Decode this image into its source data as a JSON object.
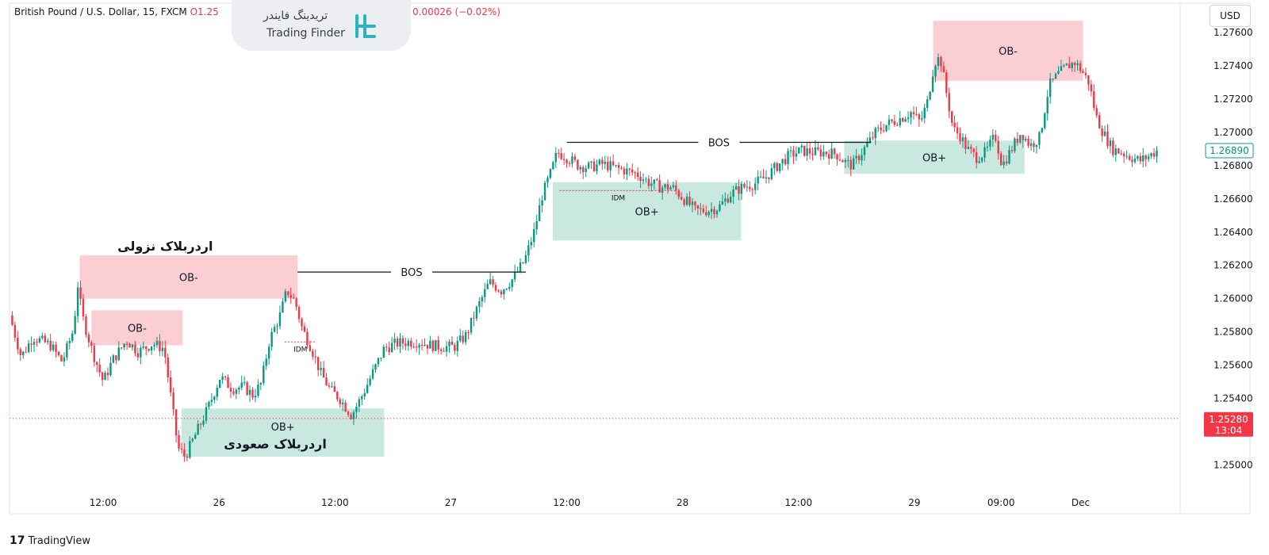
{
  "header": {
    "symbol": "British Pound / U.S. Dollar, 15, FXCM",
    "ohlc_fragment": "O1.25",
    "change_fragment": "0.00026 (−0.02%)"
  },
  "logo": {
    "fa": "تریدینگ فایندر",
    "en": "Trading Finder"
  },
  "currency_button": "USD",
  "footer_brand": "TradingView",
  "chart_data": {
    "type": "candlestick",
    "symbol": "GBPUSD",
    "timeframe": "15",
    "y_axis": {
      "ticks": [
        "1.27600",
        "1.27400",
        "1.27200",
        "1.27000",
        "1.26800",
        "1.26600",
        "1.26400",
        "1.26200",
        "1.26000",
        "1.25800",
        "1.25600",
        "1.25400",
        "1.25200",
        "1.25000"
      ],
      "range": [
        1.2485,
        1.277
      ]
    },
    "x_axis": {
      "ticks": [
        {
          "label": "12:00",
          "t": 0.08
        },
        {
          "label": "26",
          "t": 0.179
        },
        {
          "label": "12:00",
          "t": 0.278
        },
        {
          "label": "27",
          "t": 0.377
        },
        {
          "label": "12:00",
          "t": 0.476
        },
        {
          "label": "28",
          "t": 0.575
        },
        {
          "label": "12:00",
          "t": 0.674
        },
        {
          "label": "29",
          "t": 0.773
        },
        {
          "label": "09:00",
          "t": 0.847
        },
        {
          "label": "Dec",
          "t": 0.915
        }
      ]
    },
    "price_path": [
      [
        0.0,
        1.259
      ],
      [
        0.01,
        1.2565
      ],
      [
        0.02,
        1.2577
      ],
      [
        0.035,
        1.2572
      ],
      [
        0.045,
        1.2562
      ],
      [
        0.055,
        1.2582
      ],
      [
        0.058,
        1.261
      ],
      [
        0.062,
        1.259
      ],
      [
        0.07,
        1.257
      ],
      [
        0.08,
        1.255
      ],
      [
        0.088,
        1.2563
      ],
      [
        0.1,
        1.2575
      ],
      [
        0.11,
        1.2568
      ],
      [
        0.122,
        1.2573
      ],
      [
        0.132,
        1.257
      ],
      [
        0.137,
        1.2545
      ],
      [
        0.144,
        1.251
      ],
      [
        0.15,
        1.2505
      ],
      [
        0.16,
        1.252
      ],
      [
        0.17,
        1.2535
      ],
      [
        0.18,
        1.2553
      ],
      [
        0.19,
        1.2546
      ],
      [
        0.2,
        1.2547
      ],
      [
        0.208,
        1.2542
      ],
      [
        0.215,
        1.2549
      ],
      [
        0.222,
        1.2575
      ],
      [
        0.231,
        1.259
      ],
      [
        0.237,
        1.2605
      ],
      [
        0.244,
        1.2598
      ],
      [
        0.25,
        1.2582
      ],
      [
        0.258,
        1.257
      ],
      [
        0.266,
        1.2555
      ],
      [
        0.274,
        1.2545
      ],
      [
        0.282,
        1.254
      ],
      [
        0.292,
        1.253
      ],
      [
        0.3,
        1.254
      ],
      [
        0.31,
        1.2555
      ],
      [
        0.32,
        1.257
      ],
      [
        0.33,
        1.2573
      ],
      [
        0.34,
        1.2574
      ],
      [
        0.35,
        1.2574
      ],
      [
        0.36,
        1.2572
      ],
      [
        0.37,
        1.2571
      ],
      [
        0.38,
        1.2571
      ],
      [
        0.39,
        1.2578
      ],
      [
        0.4,
        1.2595
      ],
      [
        0.41,
        1.261
      ],
      [
        0.42,
        1.2605
      ],
      [
        0.43,
        1.2612
      ],
      [
        0.44,
        1.2623
      ],
      [
        0.448,
        1.264
      ],
      [
        0.455,
        1.2662
      ],
      [
        0.462,
        1.2675
      ],
      [
        0.468,
        1.2688
      ],
      [
        0.476,
        1.2685
      ],
      [
        0.486,
        1.268
      ],
      [
        0.496,
        1.2679
      ],
      [
        0.506,
        1.2681
      ],
      [
        0.516,
        1.2679
      ],
      [
        0.526,
        1.2677
      ],
      [
        0.536,
        1.2675
      ],
      [
        0.546,
        1.267
      ],
      [
        0.556,
        1.2667
      ],
      [
        0.566,
        1.2667
      ],
      [
        0.576,
        1.266
      ],
      [
        0.586,
        1.2653
      ],
      [
        0.596,
        1.2653
      ],
      [
        0.606,
        1.2655
      ],
      [
        0.616,
        1.2663
      ],
      [
        0.626,
        1.2667
      ],
      [
        0.636,
        1.2669
      ],
      [
        0.646,
        1.2673
      ],
      [
        0.656,
        1.268
      ],
      [
        0.666,
        1.2686
      ],
      [
        0.676,
        1.2689
      ],
      [
        0.686,
        1.2688
      ],
      [
        0.696,
        1.2688
      ],
      [
        0.706,
        1.2687
      ],
      [
        0.714,
        1.2682
      ],
      [
        0.72,
        1.268
      ],
      [
        0.73,
        1.269
      ],
      [
        0.74,
        1.27
      ],
      [
        0.75,
        1.2705
      ],
      [
        0.76,
        1.2708
      ],
      [
        0.77,
        1.2712
      ],
      [
        0.778,
        1.2706
      ],
      [
        0.784,
        1.2718
      ],
      [
        0.79,
        1.2742
      ],
      [
        0.795,
        1.2745
      ],
      [
        0.8,
        1.2725
      ],
      [
        0.806,
        1.2702
      ],
      [
        0.812,
        1.2698
      ],
      [
        0.818,
        1.269
      ],
      [
        0.826,
        1.2685
      ],
      [
        0.834,
        1.2688
      ],
      [
        0.842,
        1.2698
      ],
      [
        0.848,
        1.268
      ],
      [
        0.856,
        1.269
      ],
      [
        0.864,
        1.27
      ],
      [
        0.872,
        1.2692
      ],
      [
        0.88,
        1.2697
      ],
      [
        0.888,
        1.2728
      ],
      [
        0.896,
        1.2735
      ],
      [
        0.904,
        1.274
      ],
      [
        0.91,
        1.2742
      ],
      [
        0.916,
        1.2737
      ],
      [
        0.922,
        1.273
      ],
      [
        0.928,
        1.271
      ],
      [
        0.934,
        1.27
      ],
      [
        0.942,
        1.269
      ],
      [
        0.95,
        1.2688
      ],
      [
        0.958,
        1.2685
      ],
      [
        0.966,
        1.2683
      ],
      [
        0.974,
        1.2686
      ],
      [
        0.98,
        1.2689
      ]
    ],
    "zones": [
      {
        "label": "OB-",
        "type": "bearish",
        "t0": 0.06,
        "t1": 0.246,
        "p0": 1.26,
        "p1": 1.2626
      },
      {
        "label": "OB-",
        "type": "bearish",
        "t0": 0.07,
        "t1": 0.148,
        "p0": 1.2572,
        "p1": 1.2593
      },
      {
        "label": "OB+",
        "type": "bullish",
        "t0": 0.147,
        "t1": 0.32,
        "p0": 1.2505,
        "p1": 1.2534
      },
      {
        "label": "OB+",
        "type": "bullish",
        "t0": 0.464,
        "t1": 0.625,
        "p0": 1.2635,
        "p1": 1.267
      },
      {
        "label": "OB+",
        "type": "bullish",
        "t0": 0.713,
        "t1": 0.867,
        "p0": 1.2675,
        "p1": 1.2695
      },
      {
        "label": "OB-",
        "type": "bearish",
        "t0": 0.789,
        "t1": 0.917,
        "p0": 1.2731,
        "p1": 1.2767
      }
    ],
    "bos": [
      {
        "label": "BOS",
        "t0": 0.246,
        "t1": 0.441,
        "p": 1.2616
      },
      {
        "label": "BOS",
        "t0": 0.476,
        "t1": 0.736,
        "p": 1.2694
      }
    ],
    "idm": [
      {
        "label": "IDM",
        "t0": 0.235,
        "t1": 0.262,
        "p": 1.2574
      },
      {
        "label": "IDM",
        "t0": 0.47,
        "t1": 0.57,
        "p": 1.2665
      }
    ],
    "annotations": [
      {
        "text": "اردربلاک نزولی",
        "t": 0.133,
        "p": 1.2629
      },
      {
        "text": "اردربلاک صعودی",
        "t": 0.227,
        "p": 1.251
      }
    ],
    "last_price": {
      "value": "1.26890",
      "color": "#089981"
    },
    "current_price": {
      "value": "1.25280",
      "countdown": "13:04",
      "color": "#f23645"
    },
    "colors": {
      "up": "#089981",
      "down": "#f23645",
      "bear_zone": "#f9c9cd",
      "bull_zone": "#c2e6dd"
    }
  }
}
